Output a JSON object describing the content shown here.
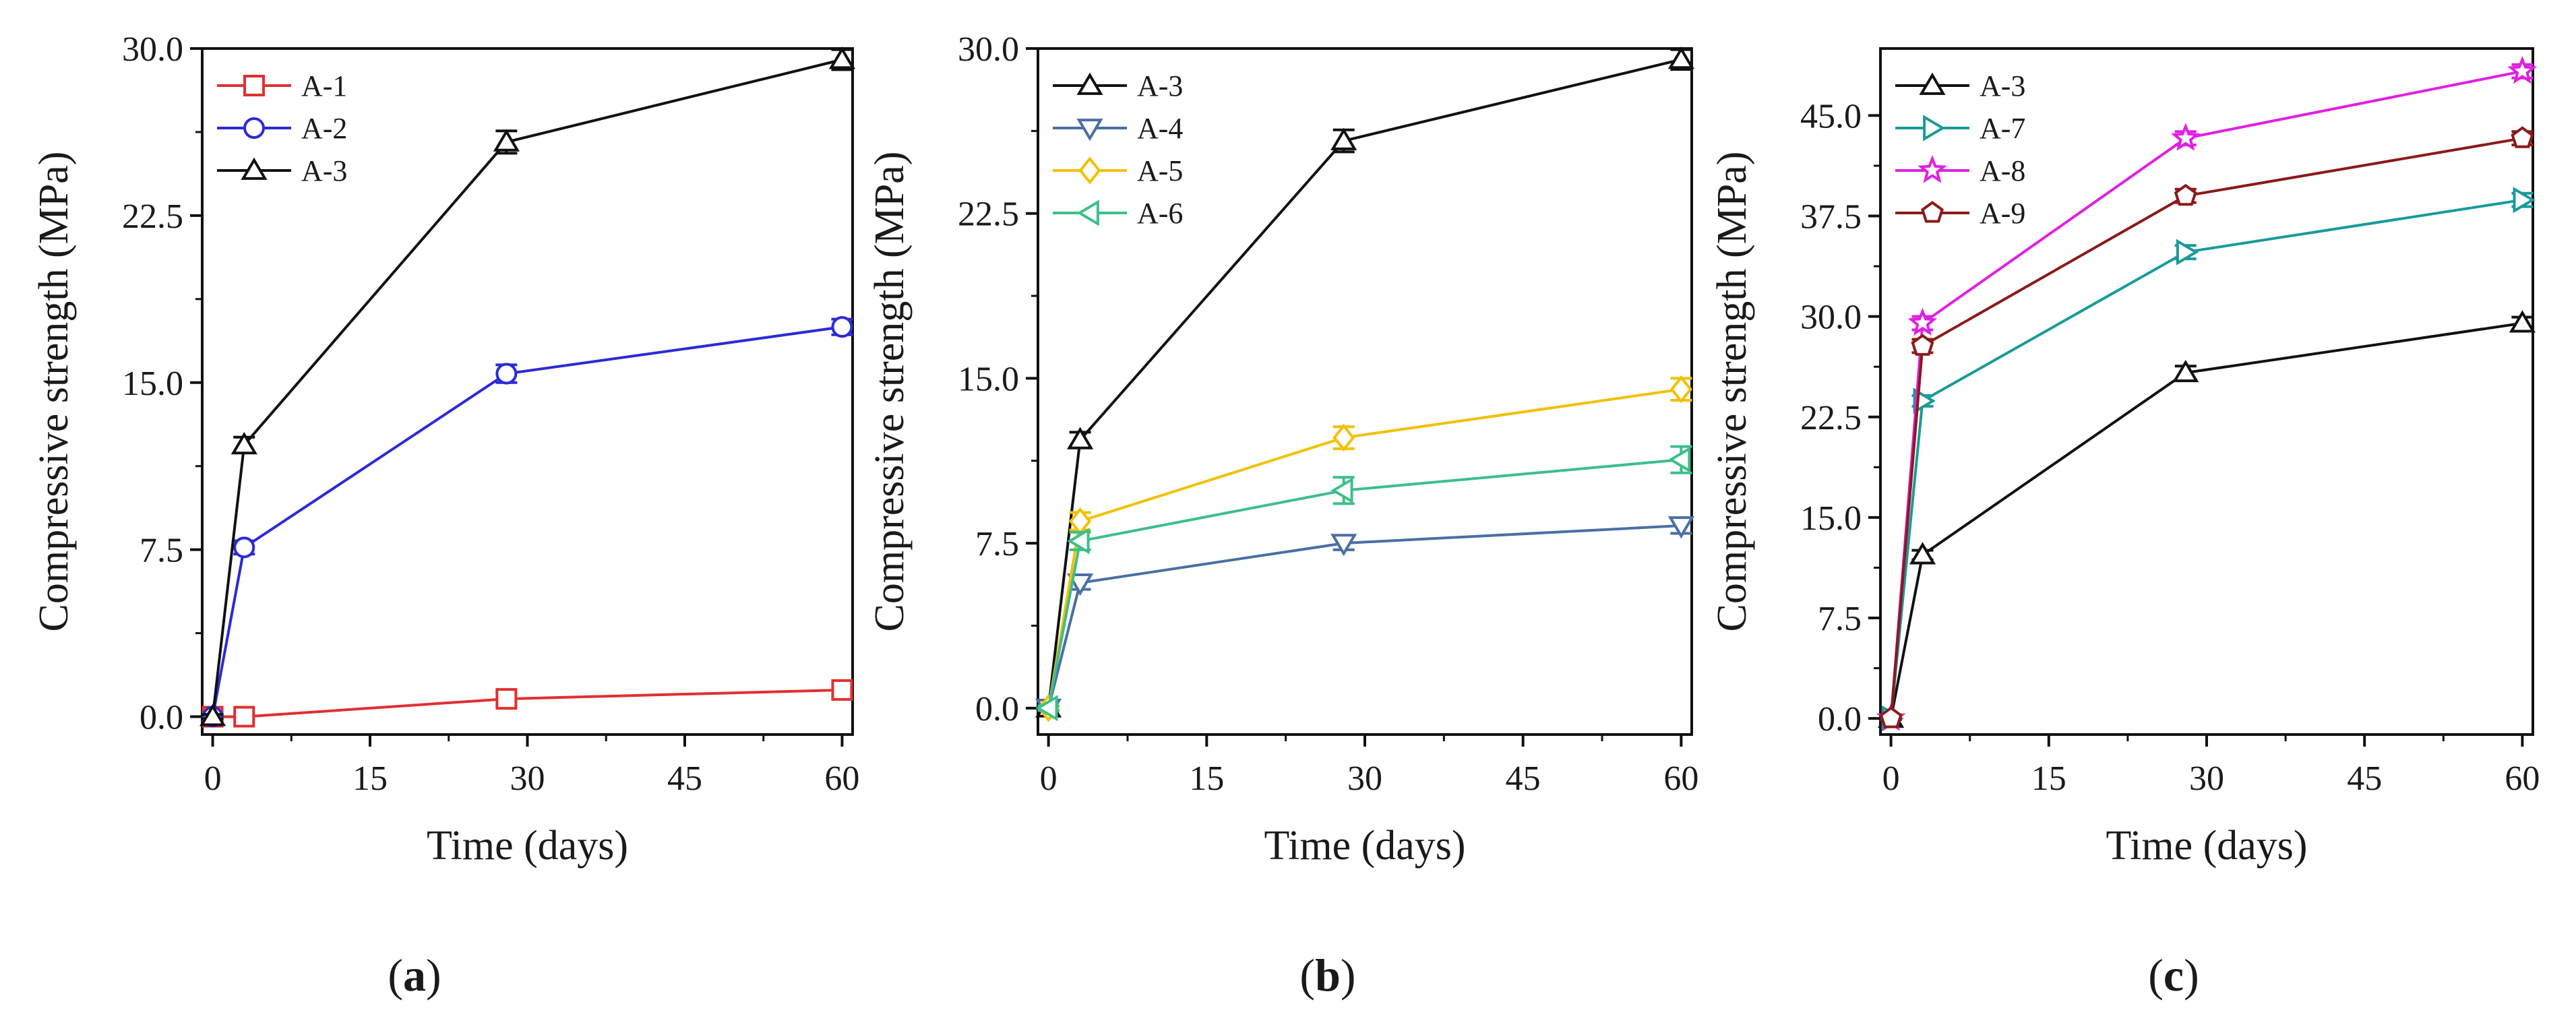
{
  "panels": [
    {
      "caption_open": "(",
      "caption_letter": "a",
      "caption_close": ")"
    },
    {
      "caption_open": "(",
      "caption_letter": "b",
      "caption_close": ")"
    },
    {
      "caption_open": "(",
      "caption_letter": "c",
      "caption_close": ")"
    }
  ],
  "chart_data": [
    {
      "type": "line",
      "panel": "a",
      "xlabel": "Time (days)",
      "ylabel": "Compressive strength (MPa)",
      "xlim": [
        -1,
        61
      ],
      "ylim": [
        -0.8,
        30
      ],
      "xticks": [
        0,
        15,
        30,
        45,
        60
      ],
      "xtick_labels": [
        "0",
        "15",
        "30",
        "45",
        "60"
      ],
      "yticks": [
        0,
        7.5,
        15,
        22.5,
        30
      ],
      "ytick_labels": [
        "0.0",
        "7.5",
        "15.0",
        "22.5",
        "30.0"
      ],
      "x": [
        0,
        3,
        28,
        60
      ],
      "legend_position": "top-left",
      "series": [
        {
          "name": "A-1",
          "color": "#e03030",
          "marker": "square",
          "values": [
            0,
            0,
            0.8,
            1.2
          ],
          "errors": [
            0.1,
            0.1,
            0.3,
            0.3
          ]
        },
        {
          "name": "A-2",
          "color": "#2b2bd6",
          "marker": "circle",
          "values": [
            0,
            7.6,
            15.4,
            17.5
          ],
          "errors": [
            0.1,
            0.3,
            0.4,
            0.35
          ]
        },
        {
          "name": "A-3",
          "color": "#111111",
          "marker": "triangle-up",
          "values": [
            0,
            12.2,
            25.8,
            29.5
          ],
          "errors": [
            0.1,
            0.35,
            0.5,
            0.45
          ]
        }
      ]
    },
    {
      "type": "line",
      "panel": "b",
      "xlabel": "Time (days)",
      "ylabel": "Compressive strength (MPa)",
      "xlim": [
        -1,
        61
      ],
      "ylim": [
        -1.2,
        30
      ],
      "xticks": [
        0,
        15,
        30,
        45,
        60
      ],
      "xtick_labels": [
        "0",
        "15",
        "30",
        "45",
        "60"
      ],
      "yticks": [
        0,
        7.5,
        15,
        22.5,
        30
      ],
      "ytick_labels": [
        "0.0",
        "7.5",
        "15.0",
        "22.5",
        "30.0"
      ],
      "x": [
        0,
        3,
        28,
        60
      ],
      "legend_position": "top-left",
      "series": [
        {
          "name": "A-3",
          "color": "#111111",
          "marker": "triangle-up",
          "values": [
            0,
            12.2,
            25.8,
            29.5
          ],
          "errors": [
            0.1,
            0.35,
            0.5,
            0.45
          ]
        },
        {
          "name": "A-4",
          "color": "#4a6fa5",
          "marker": "triangle-down",
          "values": [
            0,
            5.7,
            7.5,
            8.3
          ],
          "errors": [
            0.1,
            0.3,
            0.3,
            0.35
          ]
        },
        {
          "name": "A-5",
          "color": "#f2c100",
          "marker": "diamond",
          "values": [
            0,
            8.5,
            12.3,
            14.5
          ],
          "errors": [
            0.1,
            0.4,
            0.5,
            0.5
          ]
        },
        {
          "name": "A-6",
          "color": "#3dbf8a",
          "marker": "triangle-left",
          "values": [
            0,
            7.6,
            9.9,
            11.3
          ],
          "errors": [
            0.1,
            0.4,
            0.6,
            0.6
          ]
        }
      ]
    },
    {
      "type": "line",
      "panel": "c",
      "xlabel": "Time (days)",
      "ylabel": "Compressive strength (MPa)",
      "xlim": [
        -1,
        61
      ],
      "ylim": [
        -1.2,
        50
      ],
      "xticks": [
        0,
        15,
        30,
        45,
        60
      ],
      "xtick_labels": [
        "0",
        "15",
        "30",
        "45",
        "60"
      ],
      "yticks": [
        0,
        7.5,
        15,
        22.5,
        30,
        37.5,
        45
      ],
      "ytick_labels": [
        "0.0",
        "7.5",
        "15.0",
        "22.5",
        "30.0",
        "37.5",
        "45.0"
      ],
      "x": [
        0,
        3,
        28,
        60
      ],
      "legend_position": "top-left",
      "series": [
        {
          "name": "A-3",
          "color": "#111111",
          "marker": "triangle-up",
          "values": [
            0,
            12.2,
            25.8,
            29.5
          ],
          "errors": [
            0.1,
            0.35,
            0.5,
            0.45
          ]
        },
        {
          "name": "A-7",
          "color": "#1a9a9a",
          "marker": "triangle-right",
          "values": [
            0,
            23.7,
            34.8,
            38.7
          ],
          "errors": [
            0.1,
            0.4,
            0.5,
            0.5
          ]
        },
        {
          "name": "A-8",
          "color": "#e020e0",
          "marker": "star",
          "values": [
            0,
            29.5,
            43.3,
            48.3
          ],
          "errors": [
            0.1,
            0.5,
            0.5,
            0.5
          ]
        },
        {
          "name": "A-9",
          "color": "#8b1a1a",
          "marker": "pentagon",
          "values": [
            0,
            27.8,
            39.0,
            43.3
          ],
          "errors": [
            0.1,
            0.5,
            0.5,
            0.5
          ]
        }
      ]
    }
  ]
}
